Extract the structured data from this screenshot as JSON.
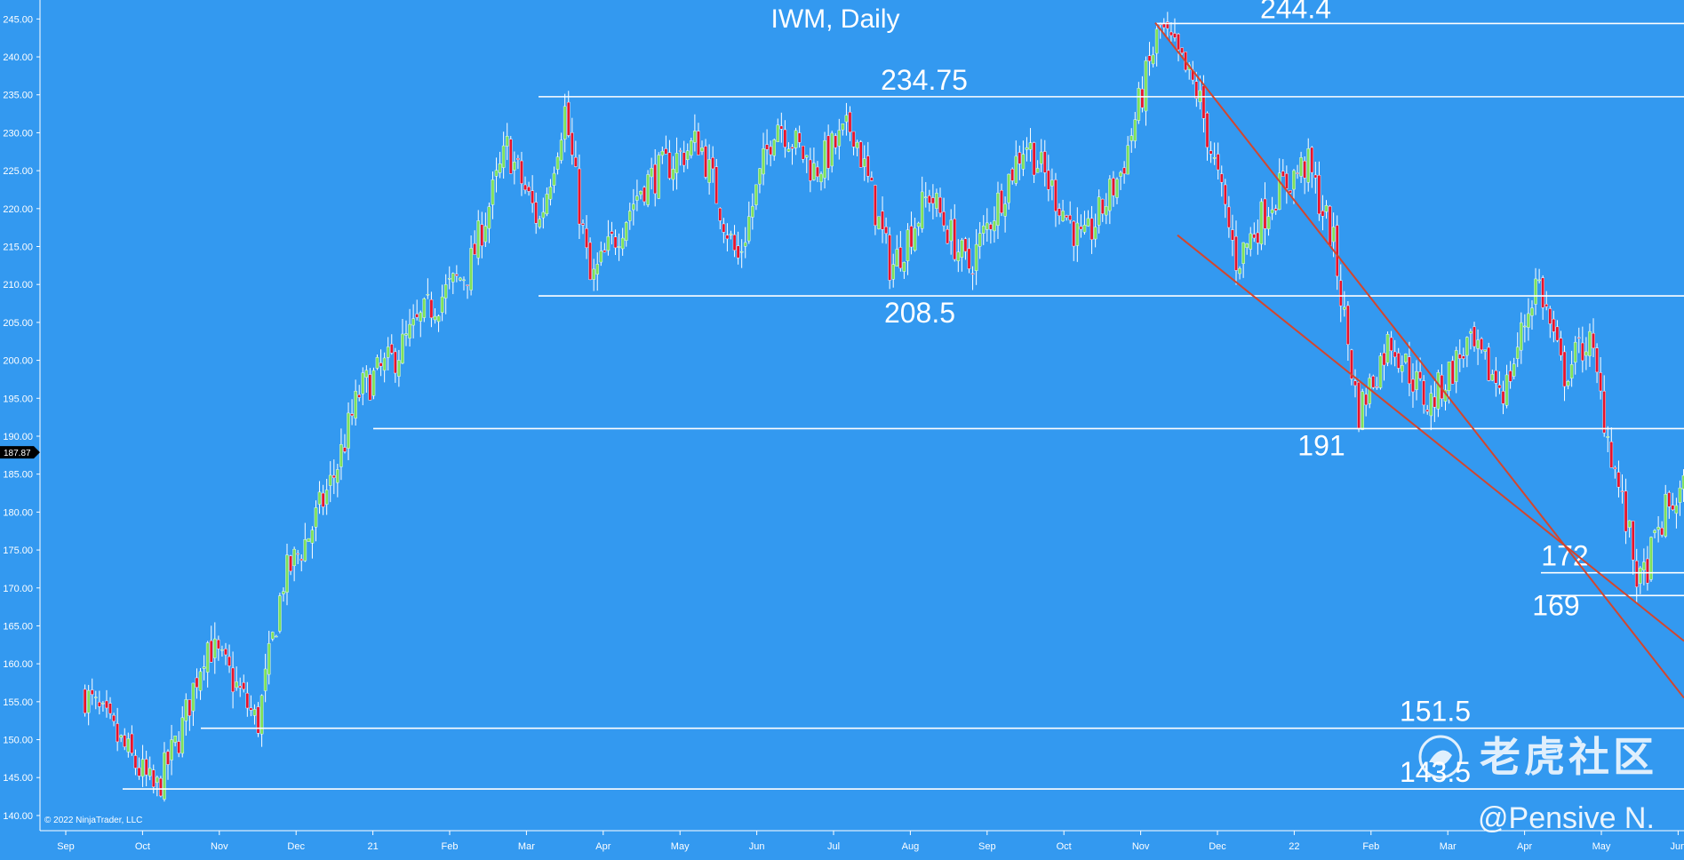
{
  "chart_data": {
    "type": "candlestick",
    "title": "IWM, Daily",
    "y_ticks": [
      "245.00",
      "240.00",
      "235.00",
      "230.00",
      "225.00",
      "220.00",
      "215.00",
      "210.00",
      "205.00",
      "200.00",
      "195.00",
      "190.00",
      "185.00",
      "180.00",
      "175.00",
      "170.00",
      "165.00",
      "160.00",
      "155.00",
      "150.00",
      "145.00",
      "140.00"
    ],
    "ylim": [
      138,
      247.5
    ],
    "x_ticks": [
      "Sep",
      "Oct",
      "Nov",
      "Dec",
      "21",
      "Feb",
      "Mar",
      "Apr",
      "May",
      "Jun",
      "Jul",
      "Aug",
      "Sep",
      "Oct",
      "Nov",
      "Dec",
      "22",
      "Feb",
      "Mar",
      "Apr",
      "May",
      "Jun"
    ],
    "current_price": "187.87",
    "levels": [
      {
        "value": 244.4,
        "label": "244.4"
      },
      {
        "value": 234.75,
        "label": "234.75"
      },
      {
        "value": 208.5,
        "label": "208.5"
      },
      {
        "value": 191,
        "label": "191"
      },
      {
        "value": 172,
        "label": "172"
      },
      {
        "value": 169,
        "label": "169"
      },
      {
        "value": 151.5,
        "label": "151.5"
      },
      {
        "value": 143.5,
        "label": "143.5"
      }
    ],
    "trendlines": [
      {
        "from": [
          "2021-11",
          244.5
        ],
        "to": [
          "2022-06",
          155.5
        ]
      },
      {
        "from": [
          "2021-12",
          216.5
        ],
        "to": [
          "2022-06",
          163
        ]
      }
    ],
    "price_path": [
      [
        "2020-09",
        156
      ],
      [
        "2020-09",
        149
      ],
      [
        "2020-10",
        143
      ],
      [
        "2020-10",
        151
      ],
      [
        "2020-10",
        163
      ],
      [
        "2020-11",
        158
      ],
      [
        "2020-11",
        152
      ],
      [
        "2020-11",
        171
      ],
      [
        "2020-12",
        177
      ],
      [
        "2020-12",
        185
      ],
      [
        "2020-12",
        196
      ],
      [
        "2021-01",
        200
      ],
      [
        "2021-01",
        207
      ],
      [
        "2021-02",
        212
      ],
      [
        "2021-02",
        228
      ],
      [
        "2021-03",
        218
      ],
      [
        "2021-03",
        233
      ],
      [
        "2021-03",
        210
      ],
      [
        "2021-04",
        223
      ],
      [
        "2021-05",
        229
      ],
      [
        "2021-05",
        213
      ],
      [
        "2021-06",
        232
      ],
      [
        "2021-06",
        225
      ],
      [
        "2021-07",
        231
      ],
      [
        "2021-07",
        212
      ],
      [
        "2021-08",
        222
      ],
      [
        "2021-08",
        212
      ],
      [
        "2021-09",
        229
      ],
      [
        "2021-10",
        215
      ],
      [
        "2021-10",
        225
      ],
      [
        "2021-11",
        244
      ],
      [
        "2021-11",
        235
      ],
      [
        "2021-12",
        213
      ],
      [
        "2021-12",
        222
      ],
      [
        "2022-01",
        226
      ],
      [
        "2022-01",
        216
      ],
      [
        "2022-01",
        193
      ],
      [
        "2022-02",
        203
      ],
      [
        "2022-02",
        194
      ],
      [
        "2022-03",
        202
      ],
      [
        "2022-03",
        196
      ],
      [
        "2022-04",
        211
      ],
      [
        "2022-04",
        198
      ],
      [
        "2022-04",
        203
      ],
      [
        "2022-05",
        186
      ],
      [
        "2022-05",
        170
      ],
      [
        "2022-05",
        180
      ],
      [
        "2022-06",
        185
      ],
      [
        "2022-06",
        188
      ]
    ],
    "copyright": "© 2022 NinjaTrader, LLC",
    "watermark_cn": "老虎社区",
    "watermark_author": "@Pensive N.",
    "colors": {
      "background": "#3399f0",
      "up": "#7ee25a",
      "down": "#e8132b",
      "level_line": "#ffffff",
      "trendline": "#d2462e",
      "text": "#ffffff"
    }
  }
}
